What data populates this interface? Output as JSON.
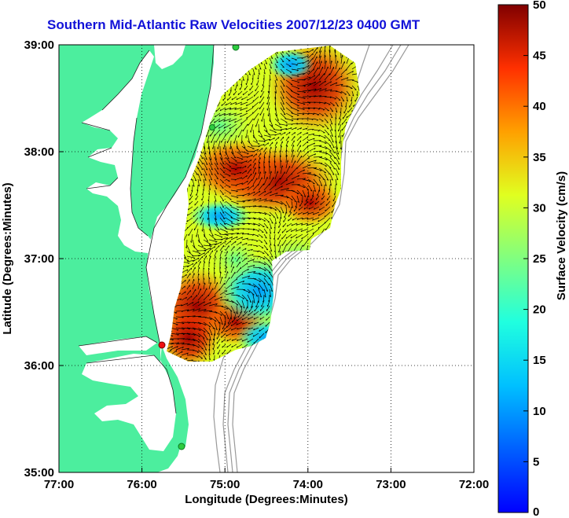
{
  "title": "Southern Mid-Atlantic Raw Velocities 2007/12/23 0400 GMT",
  "axes": {
    "x_label": "Longitude (Degrees:Minutes)",
    "y_label": "Latitude (Degrees:Minutes)",
    "x_ticks": [
      "77:00",
      "76:00",
      "75:00",
      "74:00",
      "73:00",
      "72:00"
    ],
    "y_ticks": [
      "39:00",
      "38:00",
      "37:00",
      "36:00",
      "35:00"
    ],
    "x_range": [
      -77,
      -72
    ],
    "y_range": [
      35,
      39
    ]
  },
  "colorbar": {
    "label": "Surface Velocity (cm/s)",
    "ticks": [
      "50",
      "45",
      "40",
      "35",
      "30",
      "25",
      "20",
      "15",
      "10",
      "5",
      "0"
    ],
    "range": [
      0,
      50
    ]
  },
  "colors": {
    "land": "#4cee9e",
    "title": "#1212d8",
    "bathymetry": "#999999",
    "station": "#2ecc40",
    "station_red": "#ee1111"
  }
}
